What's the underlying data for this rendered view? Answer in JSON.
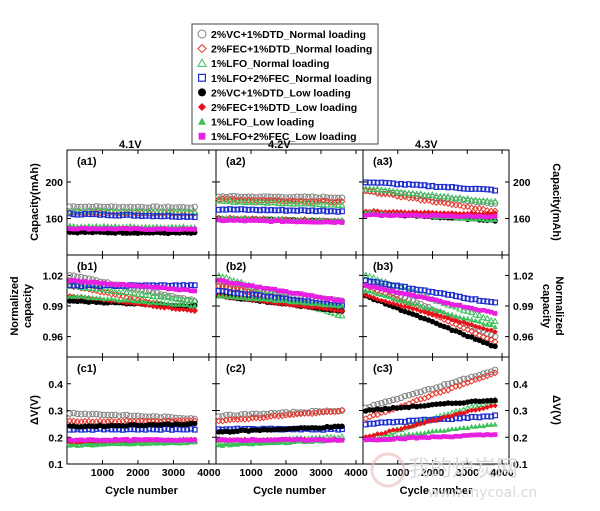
{
  "chart_data": {
    "type": "scatter",
    "legend": {
      "placement": "top-center",
      "entries": [
        {
          "name": "2%VC+1%DTD_Normal loading",
          "color": "#808080",
          "marker": "circle-open"
        },
        {
          "name": "2%FEC+1%DTD_Normal loading",
          "color": "#e8352a",
          "marker": "diamond-open"
        },
        {
          "name": "1%LFO_Normal loading",
          "color": "#3cc05a",
          "marker": "triangle-open"
        },
        {
          "name": "1%LFO+2%FEC_Normal loading",
          "color": "#1f2fd0",
          "marker": "square-open"
        },
        {
          "name": "2%VC+1%DTD_Low loading",
          "color": "#000000",
          "marker": "circle-filled"
        },
        {
          "name": "2%FEC+1%DTD_Low loading",
          "color": "#e8101a",
          "marker": "diamond-filled"
        },
        {
          "name": "1%LFO_Low loading",
          "color": "#3cc05a",
          "marker": "triangle-filled"
        },
        {
          "name": "1%LFO+2%FEC_Low loading",
          "color": "#e81ee0",
          "marker": "square-filled"
        }
      ]
    },
    "columns": [
      {
        "voltage": "4.1V",
        "xmax": 3600
      },
      {
        "voltage": "4.2V",
        "xmax": 3600
      },
      {
        "voltage": "4.3V",
        "xmax": 3800
      }
    ],
    "xlabel": "Cycle number",
    "xticks": [
      1000,
      2000,
      3000,
      4000
    ],
    "xlim": [
      0,
      4200
    ],
    "rows": [
      {
        "ylabel": "Capacity(mAh)",
        "ylim": [
          120,
          235
        ],
        "yticks": [
          160,
          200
        ],
        "ytick_labels": [
          "160",
          "200"
        ],
        "panel_labels": [
          "(a1)",
          "(a2)",
          "(a3)"
        ]
      },
      {
        "ylabel": "Normalized capacity",
        "ylim": [
          0.94,
          1.04
        ],
        "yticks": [
          0.96,
          0.99,
          1.02
        ],
        "ytick_labels": [
          "0.96",
          "0.99",
          "1.02"
        ],
        "panel_labels": [
          "(b1)",
          "(b2)",
          "(b3)"
        ]
      },
      {
        "ylabel": "ΔV(V)",
        "ylim": [
          0.1,
          0.5
        ],
        "yticks": [
          0.1,
          0.2,
          0.3,
          0.4
        ],
        "ytick_labels": [
          "0.1",
          "0.2",
          "0.3",
          "0.4"
        ],
        "panel_labels": [
          "(c1)",
          "(c2)",
          "(c3)"
        ]
      }
    ],
    "series_values": {
      "capacity": {
        "4.1V": [
          [
            173,
            172
          ],
          [
            167,
            166
          ],
          [
            168,
            167
          ],
          [
            165,
            162
          ],
          [
            145,
            144
          ],
          [
            150,
            148
          ],
          [
            152,
            151
          ],
          [
            149,
            148
          ]
        ],
        "4.2V": [
          [
            184,
            183
          ],
          [
            181,
            178
          ],
          [
            179,
            175
          ],
          [
            170,
            168
          ],
          [
            160,
            157
          ],
          [
            161,
            158
          ],
          [
            161,
            158
          ],
          [
            158,
            156
          ]
        ],
        "4.3V": [
          [
            191,
            176
          ],
          [
            190,
            168
          ],
          [
            193,
            178
          ],
          [
            200,
            191
          ],
          [
            166,
            158
          ],
          [
            168,
            165
          ],
          [
            167,
            158
          ],
          [
            164,
            162
          ]
        ]
      },
      "normalized": {
        "4.1V": [
          [
            1.02,
            0.995
          ],
          [
            1.01,
            0.985
          ],
          [
            1.01,
            0.995
          ],
          [
            1.01,
            1.01
          ],
          [
            0.995,
            0.99
          ],
          [
            1.0,
            0.985
          ],
          [
            1.0,
            0.99
          ],
          [
            1.015,
            1.005
          ]
        ],
        "4.2V": [
          [
            1.01,
            0.995
          ],
          [
            1.01,
            0.985
          ],
          [
            1.02,
            0.98
          ],
          [
            1.005,
            0.99
          ],
          [
            1.0,
            0.985
          ],
          [
            1.0,
            0.985
          ],
          [
            1.0,
            0.99
          ],
          [
            1.015,
            0.995
          ]
        ],
        "4.3V": [
          [
            1.015,
            0.96
          ],
          [
            1.01,
            0.955
          ],
          [
            1.02,
            0.975
          ],
          [
            1.015,
            0.993
          ],
          [
            1.0,
            0.95
          ],
          [
            1.0,
            0.965
          ],
          [
            1.005,
            0.97
          ],
          [
            1.01,
            0.983
          ]
        ]
      },
      "deltaV": {
        "4.1V": [
          [
            0.29,
            0.27
          ],
          [
            0.26,
            0.26
          ],
          [
            0.18,
            0.19
          ],
          [
            0.23,
            0.23
          ],
          [
            0.24,
            0.25
          ],
          [
            0.18,
            0.19
          ],
          [
            0.17,
            0.18
          ],
          [
            0.19,
            0.19
          ]
        ],
        "4.2V": [
          [
            0.28,
            0.3
          ],
          [
            0.26,
            0.3
          ],
          [
            0.18,
            0.2
          ],
          [
            0.23,
            0.23
          ],
          [
            0.22,
            0.24
          ],
          [
            0.19,
            0.19
          ],
          [
            0.17,
            0.19
          ],
          [
            0.19,
            0.19
          ]
        ],
        "4.3V": [
          [
            0.31,
            0.45
          ],
          [
            0.27,
            0.44
          ],
          [
            0.19,
            0.34
          ],
          [
            0.25,
            0.28
          ],
          [
            0.3,
            0.34
          ],
          [
            0.2,
            0.32
          ],
          [
            0.19,
            0.25
          ],
          [
            0.19,
            0.21
          ]
        ]
      }
    }
  },
  "watermark": {
    "cn": "我的炉炭网",
    "url": "www.mycoal.cn"
  }
}
